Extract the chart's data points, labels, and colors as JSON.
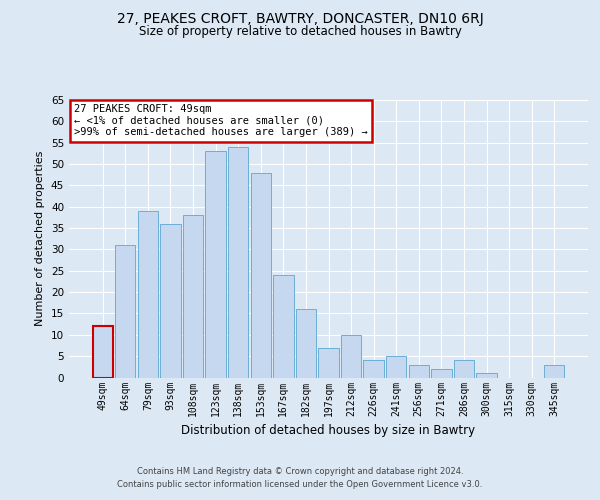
{
  "title": "27, PEAKES CROFT, BAWTRY, DONCASTER, DN10 6RJ",
  "subtitle": "Size of property relative to detached houses in Bawtry",
  "xlabel": "Distribution of detached houses by size in Bawtry",
  "ylabel": "Number of detached properties",
  "bar_labels": [
    "49sqm",
    "64sqm",
    "79sqm",
    "93sqm",
    "108sqm",
    "123sqm",
    "138sqm",
    "153sqm",
    "167sqm",
    "182sqm",
    "197sqm",
    "212sqm",
    "226sqm",
    "241sqm",
    "256sqm",
    "271sqm",
    "286sqm",
    "300sqm",
    "315sqm",
    "330sqm",
    "345sqm"
  ],
  "bar_values": [
    12,
    31,
    39,
    36,
    38,
    53,
    54,
    48,
    24,
    16,
    7,
    10,
    4,
    5,
    3,
    2,
    4,
    1,
    0,
    0,
    3
  ],
  "bar_color": "#c5d8ef",
  "bar_edge_color": "#6baed6",
  "annotation_title": "27 PEAKES CROFT: 49sqm",
  "annotation_line1": "← <1% of detached houses are smaller (0)",
  "annotation_line2": ">99% of semi-detached houses are larger (389) →",
  "annotation_box_color": "#ffffff",
  "annotation_box_edge_color": "#cc0000",
  "ylim": [
    0,
    65
  ],
  "yticks": [
    0,
    5,
    10,
    15,
    20,
    25,
    30,
    35,
    40,
    45,
    50,
    55,
    60,
    65
  ],
  "bg_color": "#dce8f4",
  "plot_bg_color": "#dce8f4",
  "footer_line1": "Contains HM Land Registry data © Crown copyright and database right 2024.",
  "footer_line2": "Contains public sector information licensed under the Open Government Licence v3.0.",
  "highlight_bar_index": 0,
  "highlight_bar_color": "#cc0000"
}
